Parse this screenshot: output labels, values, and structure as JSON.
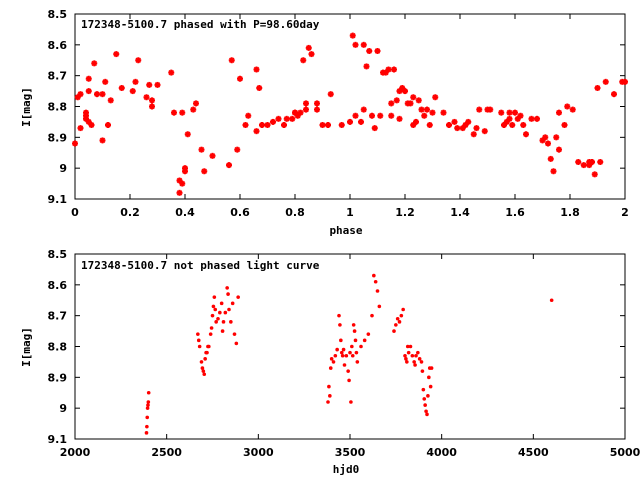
{
  "chart_data": [
    {
      "type": "scatter",
      "title": "172348-5100.7 phased with P=98.60day",
      "xlabel": "phase",
      "ylabel": "I[mag]",
      "xlim": [
        0,
        2
      ],
      "ylim": [
        9.1,
        8.5
      ],
      "y_inverted": true,
      "xticks": [
        "0",
        "0.2",
        "0.4",
        "0.6",
        "0.8",
        "1",
        "1.2",
        "1.4",
        "1.6",
        "1.8",
        "2"
      ],
      "yticks": [
        "8.5",
        "8.6",
        "8.7",
        "8.8",
        "8.9",
        "9",
        "9.1"
      ],
      "marker_color": "#ff0000",
      "marker": "star",
      "series": [
        {
          "points": [
            [
              0.0,
              8.92
            ],
            [
              0.01,
              8.77
            ],
            [
              0.02,
              8.76
            ],
            [
              0.02,
              8.87
            ],
            [
              0.04,
              8.83
            ],
            [
              0.04,
              8.82
            ],
            [
              0.04,
              8.84
            ],
            [
              0.05,
              8.85
            ],
            [
              0.05,
              8.71
            ],
            [
              0.05,
              8.75
            ],
            [
              0.06,
              8.86
            ],
            [
              0.07,
              8.66
            ],
            [
              0.08,
              8.76
            ],
            [
              0.1,
              8.91
            ],
            [
              0.1,
              8.76
            ],
            [
              0.11,
              8.72
            ],
            [
              0.12,
              8.86
            ],
            [
              0.13,
              8.78
            ],
            [
              0.15,
              8.63
            ],
            [
              0.17,
              8.74
            ],
            [
              0.21,
              8.75
            ],
            [
              0.22,
              8.72
            ],
            [
              0.23,
              8.65
            ],
            [
              0.26,
              8.77
            ],
            [
              0.27,
              8.73
            ],
            [
              0.28,
              8.78
            ],
            [
              0.28,
              8.8
            ],
            [
              0.3,
              8.73
            ],
            [
              0.35,
              8.69
            ],
            [
              0.36,
              8.82
            ],
            [
              0.38,
              9.04
            ],
            [
              0.38,
              9.08
            ],
            [
              0.39,
              9.05
            ],
            [
              0.39,
              8.82
            ],
            [
              0.4,
              9.01
            ],
            [
              0.4,
              9.0
            ],
            [
              0.41,
              8.89
            ],
            [
              0.43,
              8.81
            ],
            [
              0.44,
              8.79
            ],
            [
              0.46,
              8.94
            ],
            [
              0.47,
              9.01
            ],
            [
              0.5,
              8.96
            ],
            [
              0.56,
              8.99
            ],
            [
              0.57,
              8.65
            ],
            [
              0.59,
              8.94
            ],
            [
              0.6,
              8.71
            ],
            [
              0.62,
              8.86
            ],
            [
              0.63,
              8.83
            ],
            [
              0.66,
              8.68
            ],
            [
              0.66,
              8.88
            ],
            [
              0.67,
              8.74
            ],
            [
              0.68,
              8.86
            ],
            [
              0.7,
              8.86
            ],
            [
              0.72,
              8.85
            ],
            [
              0.74,
              8.84
            ],
            [
              0.76,
              8.86
            ],
            [
              0.77,
              8.84
            ],
            [
              0.79,
              8.84
            ],
            [
              0.8,
              8.82
            ],
            [
              0.8,
              8.82
            ],
            [
              0.81,
              8.83
            ],
            [
              0.82,
              8.82
            ],
            [
              0.83,
              8.65
            ],
            [
              0.84,
              8.79
            ],
            [
              0.84,
              8.81
            ],
            [
              0.85,
              8.61
            ],
            [
              0.86,
              8.63
            ],
            [
              0.88,
              8.79
            ],
            [
              0.88,
              8.81
            ],
            [
              0.9,
              8.86
            ],
            [
              0.92,
              8.86
            ],
            [
              0.93,
              8.76
            ],
            [
              0.97,
              8.86
            ],
            [
              1.0,
              8.85
            ],
            [
              1.01,
              8.57
            ],
            [
              1.02,
              8.6
            ],
            [
              1.02,
              8.83
            ],
            [
              1.04,
              8.85
            ],
            [
              1.05,
              8.6
            ],
            [
              1.05,
              8.81
            ],
            [
              1.06,
              8.67
            ],
            [
              1.07,
              8.62
            ],
            [
              1.08,
              8.83
            ],
            [
              1.09,
              8.87
            ],
            [
              1.1,
              8.62
            ],
            [
              1.11,
              8.83
            ],
            [
              1.12,
              8.69
            ],
            [
              1.13,
              8.69
            ],
            [
              1.14,
              8.68
            ],
            [
              1.15,
              8.79
            ],
            [
              1.15,
              8.83
            ],
            [
              1.16,
              8.68
            ],
            [
              1.17,
              8.78
            ],
            [
              1.18,
              8.75
            ],
            [
              1.18,
              8.84
            ],
            [
              1.19,
              8.74
            ],
            [
              1.2,
              8.75
            ],
            [
              1.21,
              8.79
            ],
            [
              1.22,
              8.79
            ],
            [
              1.23,
              8.86
            ],
            [
              1.23,
              8.77
            ],
            [
              1.24,
              8.85
            ],
            [
              1.25,
              8.78
            ],
            [
              1.26,
              8.81
            ],
            [
              1.27,
              8.83
            ],
            [
              1.28,
              8.81
            ],
            [
              1.29,
              8.86
            ],
            [
              1.3,
              8.82
            ],
            [
              1.31,
              8.77
            ],
            [
              1.34,
              8.82
            ],
            [
              1.36,
              8.86
            ],
            [
              1.38,
              8.85
            ],
            [
              1.39,
              8.87
            ],
            [
              1.41,
              8.87
            ],
            [
              1.42,
              8.86
            ],
            [
              1.43,
              8.85
            ],
            [
              1.45,
              8.89
            ],
            [
              1.46,
              8.87
            ],
            [
              1.47,
              8.81
            ],
            [
              1.49,
              8.88
            ],
            [
              1.5,
              8.81
            ],
            [
              1.51,
              8.81
            ],
            [
              1.55,
              8.82
            ],
            [
              1.56,
              8.86
            ],
            [
              1.57,
              8.85
            ],
            [
              1.58,
              8.84
            ],
            [
              1.58,
              8.82
            ],
            [
              1.59,
              8.86
            ],
            [
              1.6,
              8.82
            ],
            [
              1.61,
              8.84
            ],
            [
              1.62,
              8.83
            ],
            [
              1.63,
              8.86
            ],
            [
              1.64,
              8.89
            ],
            [
              1.66,
              8.84
            ],
            [
              1.68,
              8.84
            ],
            [
              1.7,
              8.91
            ],
            [
              1.71,
              8.9
            ],
            [
              1.72,
              8.92
            ],
            [
              1.73,
              8.97
            ],
            [
              1.74,
              9.01
            ],
            [
              1.75,
              8.9
            ],
            [
              1.76,
              8.94
            ],
            [
              1.76,
              8.82
            ],
            [
              1.78,
              8.86
            ],
            [
              1.79,
              8.8
            ],
            [
              1.81,
              8.81
            ],
            [
              1.83,
              8.98
            ],
            [
              1.85,
              8.99
            ],
            [
              1.87,
              8.98
            ],
            [
              1.87,
              8.99
            ],
            [
              1.88,
              8.98
            ],
            [
              1.89,
              9.02
            ],
            [
              1.9,
              8.74
            ],
            [
              1.91,
              8.98
            ],
            [
              1.93,
              8.72
            ],
            [
              1.96,
              8.76
            ],
            [
              1.99,
              8.72
            ],
            [
              2.0,
              8.72
            ]
          ]
        }
      ]
    },
    {
      "type": "scatter",
      "title": "172348-5100.7 not phased light curve",
      "xlabel": "hjd0",
      "ylabel": "I[mag]",
      "xlim": [
        2000,
        5000
      ],
      "ylim": [
        9.1,
        8.5
      ],
      "y_inverted": true,
      "xticks": [
        "2000",
        "2500",
        "3000",
        "3500",
        "4000",
        "4500",
        "5000"
      ],
      "yticks": [
        "8.5",
        "8.6",
        "8.7",
        "8.8",
        "8.9",
        "9",
        "9.1"
      ],
      "marker_color": "#ff0000",
      "marker": "dot",
      "series": [
        {
          "points": [
            [
              2390,
              9.08
            ],
            [
              2392,
              9.06
            ],
            [
              2394,
              9.03
            ],
            [
              2396,
              9.0
            ],
            [
              2398,
              8.99
            ],
            [
              2400,
              8.98
            ],
            [
              2402,
              8.95
            ],
            [
              2670,
              8.76
            ],
            [
              2675,
              8.78
            ],
            [
              2680,
              8.8
            ],
            [
              2690,
              8.85
            ],
            [
              2695,
              8.87
            ],
            [
              2700,
              8.88
            ],
            [
              2705,
              8.89
            ],
            [
              2710,
              8.84
            ],
            [
              2715,
              8.82
            ],
            [
              2720,
              8.82
            ],
            [
              2725,
              8.8
            ],
            [
              2730,
              8.8
            ],
            [
              2740,
              8.76
            ],
            [
              2745,
              8.74
            ],
            [
              2750,
              8.7
            ],
            [
              2755,
              8.67
            ],
            [
              2760,
              8.64
            ],
            [
              2765,
              8.68
            ],
            [
              2770,
              8.72
            ],
            [
              2780,
              8.71
            ],
            [
              2790,
              8.69
            ],
            [
              2800,
              8.66
            ],
            [
              2805,
              8.75
            ],
            [
              2810,
              8.72
            ],
            [
              2820,
              8.69
            ],
            [
              2830,
              8.61
            ],
            [
              2835,
              8.63
            ],
            [
              2840,
              8.68
            ],
            [
              2850,
              8.72
            ],
            [
              2860,
              8.66
            ],
            [
              2870,
              8.76
            ],
            [
              2880,
              8.79
            ],
            [
              2890,
              8.64
            ],
            [
              3380,
              8.98
            ],
            [
              3385,
              8.93
            ],
            [
              3390,
              8.96
            ],
            [
              3395,
              8.87
            ],
            [
              3400,
              8.84
            ],
            [
              3410,
              8.85
            ],
            [
              3420,
              8.83
            ],
            [
              3430,
              8.81
            ],
            [
              3440,
              8.7
            ],
            [
              3445,
              8.73
            ],
            [
              3450,
              8.78
            ],
            [
              3455,
              8.82
            ],
            [
              3460,
              8.83
            ],
            [
              3465,
              8.81
            ],
            [
              3470,
              8.86
            ],
            [
              3480,
              8.83
            ],
            [
              3490,
              8.88
            ],
            [
              3495,
              8.91
            ],
            [
              3500,
              8.82
            ],
            [
              3505,
              8.98
            ],
            [
              3510,
              8.8
            ],
            [
              3515,
              8.83
            ],
            [
              3520,
              8.73
            ],
            [
              3525,
              8.75
            ],
            [
              3530,
              8.78
            ],
            [
              3535,
              8.82
            ],
            [
              3540,
              8.85
            ],
            [
              3560,
              8.8
            ],
            [
              3580,
              8.78
            ],
            [
              3600,
              8.76
            ],
            [
              3620,
              8.7
            ],
            [
              3630,
              8.57
            ],
            [
              3640,
              8.59
            ],
            [
              3650,
              8.62
            ],
            [
              3660,
              8.67
            ],
            [
              3740,
              8.75
            ],
            [
              3750,
              8.73
            ],
            [
              3760,
              8.71
            ],
            [
              3770,
              8.72
            ],
            [
              3780,
              8.7
            ],
            [
              3790,
              8.68
            ],
            [
              3800,
              8.83
            ],
            [
              3805,
              8.84
            ],
            [
              3810,
              8.85
            ],
            [
              3815,
              8.8
            ],
            [
              3820,
              8.82
            ],
            [
              3830,
              8.8
            ],
            [
              3840,
              8.83
            ],
            [
              3850,
              8.85
            ],
            [
              3855,
              8.86
            ],
            [
              3860,
              8.83
            ],
            [
              3870,
              8.82
            ],
            [
              3880,
              8.84
            ],
            [
              3890,
              8.85
            ],
            [
              3895,
              8.88
            ],
            [
              3900,
              8.94
            ],
            [
              3905,
              8.97
            ],
            [
              3910,
              8.99
            ],
            [
              3915,
              9.01
            ],
            [
              3920,
              9.02
            ],
            [
              3925,
              8.96
            ],
            [
              3930,
              8.9
            ],
            [
              3935,
              8.87
            ],
            [
              3940,
              8.93
            ],
            [
              3945,
              8.87
            ],
            [
              4600,
              8.65
            ]
          ]
        }
      ]
    }
  ]
}
